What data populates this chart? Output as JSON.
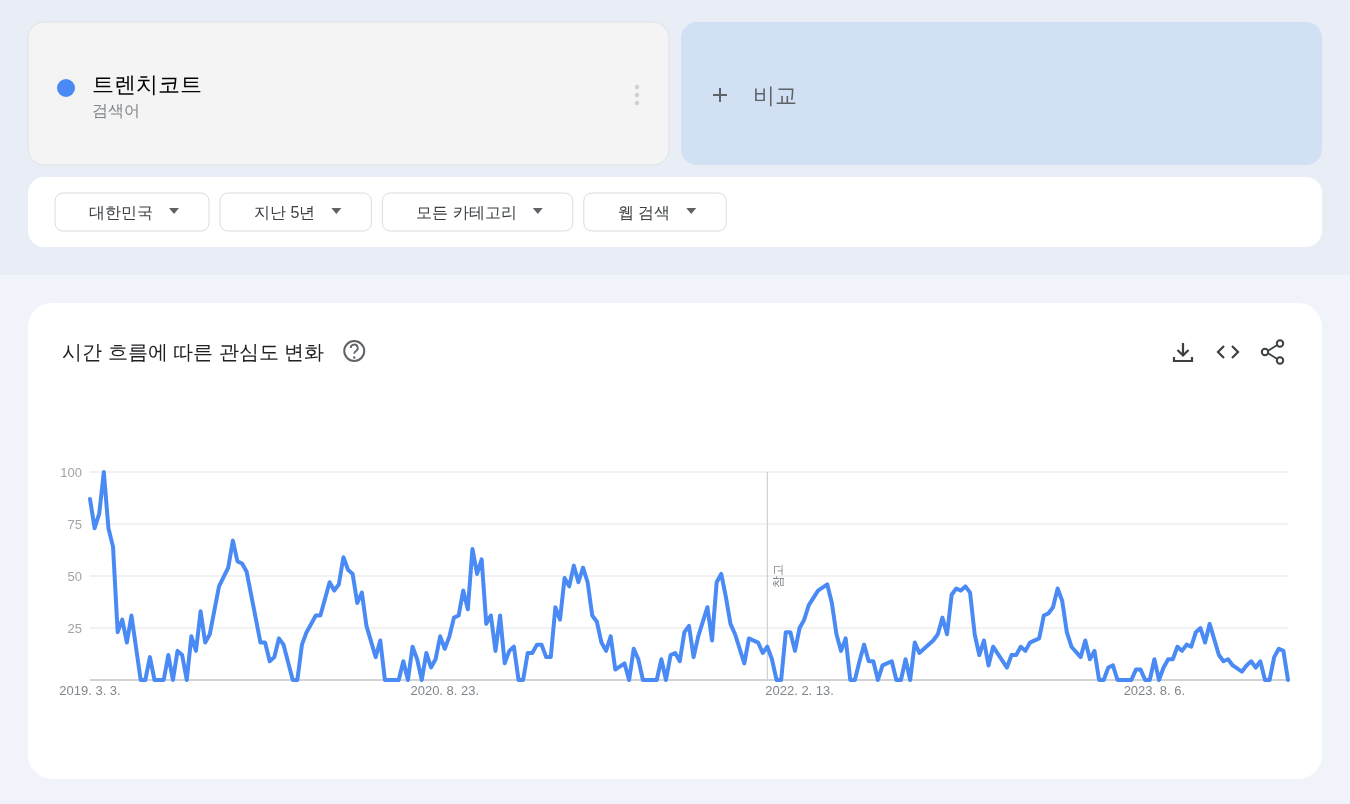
{
  "chart_data": {
    "type": "line",
    "title": "시간 흐름에 따른 관심도 변화",
    "series": [
      {
        "name": "트렌치코트",
        "color": "#4a8af4",
        "x": [
          "2019-03-03",
          "2019-03-10",
          "2019-03-17",
          "2019-03-24",
          "2019-03-31",
          "2019-04-07",
          "2019-04-14",
          "2019-04-21",
          "2019-04-28",
          "2019-05-05",
          "2019-05-19",
          "2019-05-26",
          "2019-06-02",
          "2019-06-09",
          "2019-06-23",
          "2019-06-30",
          "2019-07-07",
          "2019-07-14",
          "2019-07-21",
          "2019-07-28",
          "2019-08-04",
          "2019-08-11",
          "2019-08-18",
          "2019-08-25",
          "2019-09-01",
          "2019-09-15",
          "2019-09-29",
          "2019-10-06",
          "2019-10-13",
          "2019-10-20",
          "2019-10-27",
          "2019-11-17",
          "2019-11-24",
          "2019-12-01",
          "2019-12-08",
          "2019-12-15",
          "2019-12-22",
          "2020-01-05",
          "2020-01-12",
          "2020-01-19",
          "2020-01-26",
          "2020-02-09",
          "2020-02-16",
          "2020-03-01",
          "2020-03-08",
          "2020-03-15",
          "2020-03-22",
          "2020-03-29",
          "2020-04-05",
          "2020-04-12",
          "2020-04-19",
          "2020-04-26",
          "2020-05-10",
          "2020-05-17",
          "2020-05-24",
          "2020-06-14",
          "2020-06-21",
          "2020-06-28",
          "2020-07-05",
          "2020-07-12",
          "2020-07-19",
          "2020-07-26",
          "2020-08-02",
          "2020-08-09",
          "2020-08-16",
          "2020-08-23",
          "2020-08-30",
          "2020-09-06",
          "2020-09-13",
          "2020-09-20",
          "2020-09-27",
          "2020-10-04",
          "2020-10-11",
          "2020-10-18",
          "2020-10-25",
          "2020-11-01",
          "2020-11-08",
          "2020-11-15",
          "2020-11-22",
          "2020-11-29",
          "2020-12-06",
          "2020-12-13",
          "2020-12-20",
          "2020-12-27",
          "2021-01-03",
          "2021-01-10",
          "2021-01-17",
          "2021-01-24",
          "2021-01-31",
          "2021-02-07",
          "2021-02-14",
          "2021-02-21",
          "2021-02-28",
          "2021-03-07",
          "2021-03-14",
          "2021-03-21",
          "2021-03-28",
          "2021-04-04",
          "2021-04-11",
          "2021-04-18",
          "2021-04-25",
          "2021-05-02",
          "2021-05-09",
          "2021-05-23",
          "2021-05-30",
          "2021-06-06",
          "2021-06-13",
          "2021-06-20",
          "2021-07-11",
          "2021-07-18",
          "2021-07-25",
          "2021-08-01",
          "2021-08-08",
          "2021-08-15",
          "2021-08-22",
          "2021-08-29",
          "2021-09-05",
          "2021-09-12",
          "2021-09-26",
          "2021-10-03",
          "2021-10-10",
          "2021-10-17",
          "2021-10-24",
          "2021-10-31",
          "2021-11-07",
          "2021-11-21",
          "2021-11-28",
          "2021-12-12",
          "2021-12-19",
          "2021-12-26",
          "2022-01-02",
          "2022-01-09",
          "2022-01-16",
          "2022-01-23",
          "2022-01-30",
          "2022-02-06",
          "2022-02-13",
          "2022-02-20",
          "2022-02-27",
          "2022-03-13",
          "2022-03-27",
          "2022-04-03",
          "2022-04-10",
          "2022-04-17",
          "2022-04-24",
          "2022-05-01",
          "2022-05-08",
          "2022-05-15",
          "2022-05-22",
          "2022-05-29",
          "2022-06-05",
          "2022-06-12",
          "2022-06-19",
          "2022-07-03",
          "2022-07-10",
          "2022-07-17",
          "2022-07-24",
          "2022-07-31",
          "2022-08-07",
          "2022-08-14",
          "2022-08-21",
          "2022-09-04",
          "2022-09-11",
          "2022-09-18",
          "2022-09-25",
          "2022-10-02",
          "2022-10-09",
          "2022-10-16",
          "2022-10-23",
          "2022-10-30",
          "2022-11-06",
          "2022-11-13",
          "2022-11-20",
          "2022-11-27",
          "2022-12-04",
          "2022-12-25",
          "2023-01-01",
          "2023-01-08",
          "2023-01-15",
          "2023-01-22",
          "2023-01-29",
          "2023-02-12",
          "2023-02-19",
          "2023-02-26",
          "2023-03-05",
          "2023-03-12",
          "2023-03-19",
          "2023-03-26",
          "2023-04-02",
          "2023-04-16",
          "2023-04-23",
          "2023-04-30",
          "2023-05-07",
          "2023-05-14",
          "2023-05-21",
          "2023-05-28",
          "2023-06-04",
          "2023-06-11",
          "2023-07-02",
          "2023-07-09",
          "2023-07-16",
          "2023-07-23",
          "2023-07-30",
          "2023-08-06",
          "2023-08-13",
          "2023-08-20",
          "2023-08-27",
          "2023-09-03",
          "2023-09-10",
          "2023-09-17",
          "2023-09-24",
          "2023-10-01",
          "2023-10-08",
          "2023-10-15",
          "2023-10-22",
          "2023-10-29",
          "2023-11-12",
          "2023-11-19",
          "2023-11-26",
          "2023-12-03",
          "2023-12-17",
          "2023-12-24",
          "2023-12-31",
          "2024-01-07",
          "2024-01-14",
          "2024-01-21",
          "2024-01-28",
          "2024-02-04",
          "2024-02-11",
          "2024-02-18",
          "2024-02-25"
        ],
        "values": [
          87,
          73,
          80,
          100,
          73,
          64,
          23,
          29,
          18,
          31,
          0,
          0,
          11,
          0,
          0,
          12,
          0,
          14,
          12,
          0,
          21,
          14,
          33,
          18,
          22,
          45,
          54,
          67,
          57,
          56,
          52,
          18,
          18,
          9,
          11,
          20,
          17,
          0,
          0,
          17,
          23,
          31,
          31,
          47,
          43,
          46,
          59,
          53,
          51,
          37,
          42,
          26,
          11,
          19,
          0,
          0,
          9,
          0,
          16,
          10,
          0,
          13,
          6,
          10,
          21,
          15,
          21,
          30,
          31,
          43,
          34,
          63,
          51,
          58,
          27,
          31,
          14,
          31,
          8,
          14,
          16,
          0,
          0,
          13,
          13,
          17,
          17,
          11,
          11,
          35,
          29,
          49,
          45,
          55,
          47,
          54,
          47,
          31,
          28,
          18,
          14,
          21,
          5,
          8,
          0,
          15,
          10,
          0,
          0,
          10,
          0,
          12,
          13,
          9,
          23,
          26,
          11,
          21,
          35,
          19,
          47,
          51,
          40,
          27,
          22,
          8,
          20,
          18,
          13,
          16,
          10,
          0,
          0,
          23,
          23,
          14,
          25,
          29,
          36,
          43,
          46,
          37,
          22,
          14,
          20,
          0,
          0,
          9,
          17,
          9,
          9,
          0,
          7,
          9,
          0,
          0,
          10,
          0,
          18,
          13,
          15,
          19,
          22,
          30,
          22,
          41,
          44,
          43,
          45,
          42,
          22,
          12,
          19,
          7,
          16,
          6,
          12,
          12,
          16,
          14,
          18,
          20,
          31,
          32,
          35,
          44,
          38,
          23,
          16,
          11,
          19,
          10,
          14,
          0,
          0,
          6,
          7,
          0,
          0,
          5,
          5,
          0,
          0,
          10,
          0,
          6,
          10,
          10,
          16,
          14,
          17,
          16,
          23,
          25,
          18,
          27,
          12,
          9,
          10,
          7,
          4,
          7,
          9,
          6,
          9,
          0,
          0,
          11,
          15,
          14,
          0
        ]
      }
    ],
    "xlim": [
      "2019-03-03",
      "2024-02-25"
    ],
    "xticks": [
      {
        "value": "2019-03-03",
        "label": "2019. 3. 3."
      },
      {
        "value": "2020-08-23",
        "label": "2020. 8. 23."
      },
      {
        "value": "2022-02-13",
        "label": "2022. 2. 13."
      },
      {
        "value": "2023-08-06",
        "label": "2023. 8. 6."
      }
    ],
    "ylim": [
      0,
      100
    ],
    "yticks": [
      25,
      50,
      75,
      100
    ],
    "grid": "y",
    "legend": "top left",
    "marker": "none",
    "line_style": "solid",
    "ref_lines": [
      {
        "axis": "x",
        "value": "2021-12-26",
        "label": "참고",
        "color": "#cfcfcf"
      }
    ],
    "annotations": [
      "검색어",
      "비교",
      "대한민국",
      "지난 5년",
      "모든 카테고리",
      "웹 검색"
    ]
  }
}
